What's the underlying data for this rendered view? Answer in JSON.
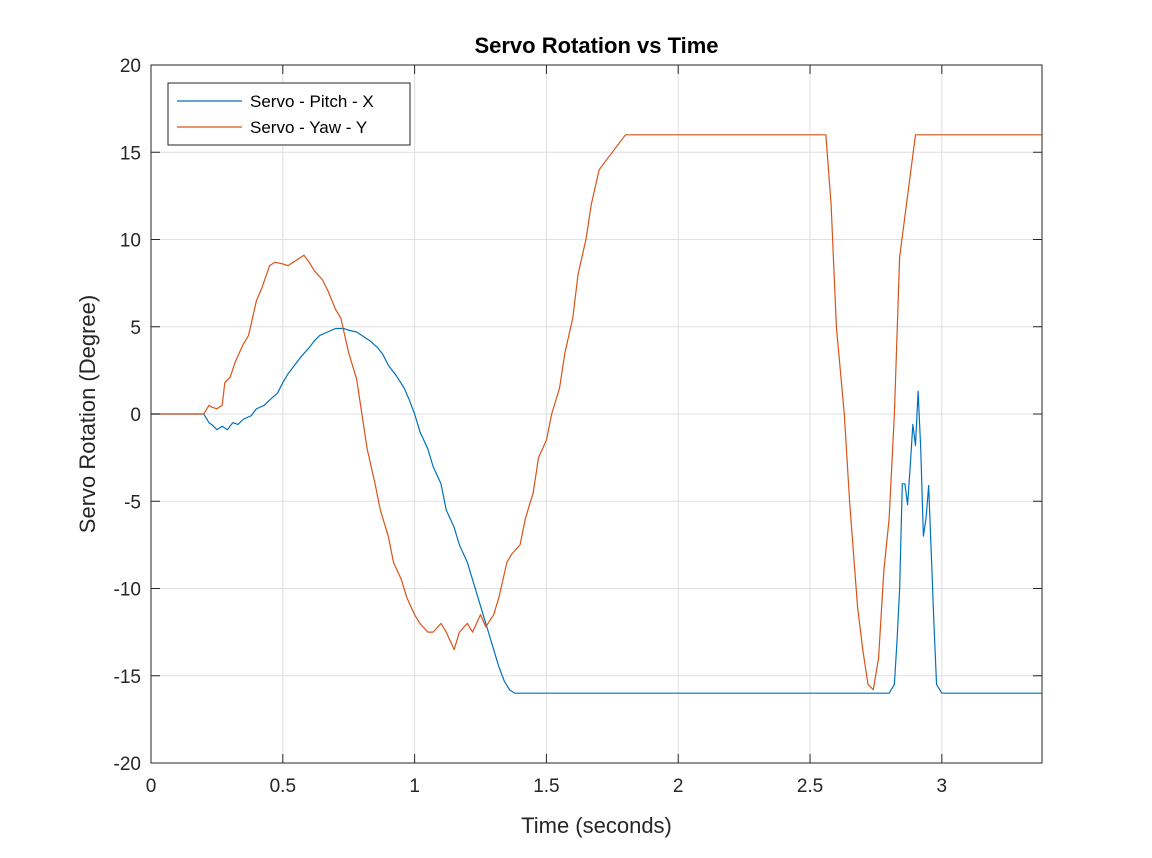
{
  "chart_data": {
    "type": "line",
    "title": "Servo Rotation vs Time",
    "xlabel": "Time (seconds)",
    "ylabel": "Servo Rotation (Degree)",
    "xlim": [
      0,
      3.38
    ],
    "ylim": [
      -20,
      20
    ],
    "xticks": [
      0,
      0.5,
      1,
      1.5,
      2,
      2.5,
      3
    ],
    "xtick_labels": [
      "0",
      "0.5",
      "1",
      "1.5",
      "2",
      "2.5",
      "3"
    ],
    "yticks": [
      -20,
      -15,
      -10,
      -5,
      0,
      5,
      10,
      15,
      20
    ],
    "ytick_labels": [
      "-20",
      "-15",
      "-10",
      "-5",
      "0",
      "5",
      "10",
      "15",
      "20"
    ],
    "grid": true,
    "legend_position": "top-left",
    "series": [
      {
        "name": "Servo - Pitch - X",
        "color": "#0072BD",
        "x": [
          0,
          0.05,
          0.1,
          0.15,
          0.2,
          0.22,
          0.23,
          0.25,
          0.27,
          0.29,
          0.31,
          0.33,
          0.35,
          0.38,
          0.4,
          0.43,
          0.45,
          0.48,
          0.5,
          0.52,
          0.54,
          0.57,
          0.6,
          0.62,
          0.64,
          0.67,
          0.7,
          0.73,
          0.75,
          0.78,
          0.8,
          0.83,
          0.86,
          0.88,
          0.9,
          0.93,
          0.96,
          0.98,
          1.0,
          1.02,
          1.05,
          1.07,
          1.1,
          1.12,
          1.15,
          1.17,
          1.2,
          1.22,
          1.25,
          1.27,
          1.29,
          1.3,
          1.32,
          1.34,
          1.36,
          1.38,
          1.4,
          1.42,
          1.45,
          1.5,
          1.6,
          1.7,
          1.8,
          2.0,
          2.2,
          2.4,
          2.6,
          2.7,
          2.8,
          2.82,
          2.83,
          2.84,
          2.85,
          2.86,
          2.87,
          2.88,
          2.89,
          2.9,
          2.91,
          2.92,
          2.93,
          2.94,
          2.95,
          2.96,
          2.97,
          2.98,
          3.0,
          3.1,
          3.2,
          3.38
        ],
        "y": [
          0,
          0,
          0,
          0,
          0,
          -0.5,
          -0.6,
          -0.9,
          -0.7,
          -0.9,
          -0.5,
          -0.6,
          -0.3,
          -0.1,
          0.3,
          0.5,
          0.8,
          1.2,
          1.8,
          2.3,
          2.7,
          3.3,
          3.8,
          4.2,
          4.5,
          4.7,
          4.9,
          4.9,
          4.8,
          4.7,
          4.5,
          4.2,
          3.8,
          3.4,
          2.8,
          2.2,
          1.5,
          0.8,
          0,
          -1,
          -2,
          -3,
          -4,
          -5.5,
          -6.5,
          -7.5,
          -8.5,
          -9.5,
          -11,
          -12,
          -13,
          -13.5,
          -14.5,
          -15.3,
          -15.8,
          -16,
          -16,
          -16,
          -16,
          -16,
          -16,
          -16,
          -16,
          -16,
          -16,
          -16,
          -16,
          -16,
          -16,
          -15.5,
          -13,
          -10,
          -4,
          -4,
          -5.2,
          -3,
          -0.6,
          -1.8,
          1.3,
          -2,
          -7,
          -6,
          -4.1,
          -8,
          -12,
          -15.5,
          -16,
          -16,
          -16,
          -16
        ]
      },
      {
        "name": "Servo - Yaw - Y",
        "color": "#D95319",
        "x": [
          0,
          0.05,
          0.1,
          0.15,
          0.2,
          0.22,
          0.23,
          0.25,
          0.27,
          0.28,
          0.3,
          0.32,
          0.35,
          0.37,
          0.4,
          0.42,
          0.45,
          0.47,
          0.5,
          0.52,
          0.55,
          0.58,
          0.6,
          0.62,
          0.65,
          0.67,
          0.7,
          0.72,
          0.75,
          0.78,
          0.8,
          0.82,
          0.85,
          0.87,
          0.9,
          0.92,
          0.95,
          0.97,
          1.0,
          1.02,
          1.05,
          1.07,
          1.1,
          1.12,
          1.15,
          1.17,
          1.2,
          1.22,
          1.25,
          1.27,
          1.3,
          1.32,
          1.35,
          1.37,
          1.4,
          1.42,
          1.45,
          1.47,
          1.5,
          1.52,
          1.55,
          1.57,
          1.6,
          1.62,
          1.65,
          1.67,
          1.7,
          1.8,
          2.0,
          2.2,
          2.4,
          2.5,
          2.56,
          2.58,
          2.6,
          2.63,
          2.65,
          2.67,
          2.68,
          2.7,
          2.72,
          2.74,
          2.76,
          2.78,
          2.8,
          2.82,
          2.84,
          2.9,
          3.0,
          3.2,
          3.38
        ],
        "y": [
          0,
          0,
          0,
          0,
          0,
          0.5,
          0.4,
          0.3,
          0.5,
          1.8,
          2.1,
          3,
          4,
          4.5,
          6.5,
          7.2,
          8.5,
          8.7,
          8.6,
          8.5,
          8.8,
          9.1,
          8.7,
          8.2,
          7.7,
          7.1,
          6,
          5.5,
          3.5,
          2,
          0,
          -2,
          -4,
          -5.5,
          -7,
          -8.5,
          -9.5,
          -10.5,
          -11.5,
          -12,
          -12.5,
          -12.5,
          -12,
          -12.5,
          -13.5,
          -12.5,
          -12,
          -12.5,
          -11.5,
          -12.2,
          -11.5,
          -10.5,
          -8.5,
          -8,
          -7.5,
          -6,
          -4.5,
          -2.5,
          -1.5,
          0,
          1.5,
          3.5,
          5.5,
          8,
          10,
          12,
          14,
          16,
          16,
          16,
          16,
          16,
          16,
          12,
          5,
          0,
          -5,
          -9,
          -11,
          -13.5,
          -15.5,
          -15.8,
          -14,
          -9,
          -6,
          0,
          9,
          16,
          16,
          16,
          16
        ]
      }
    ]
  }
}
